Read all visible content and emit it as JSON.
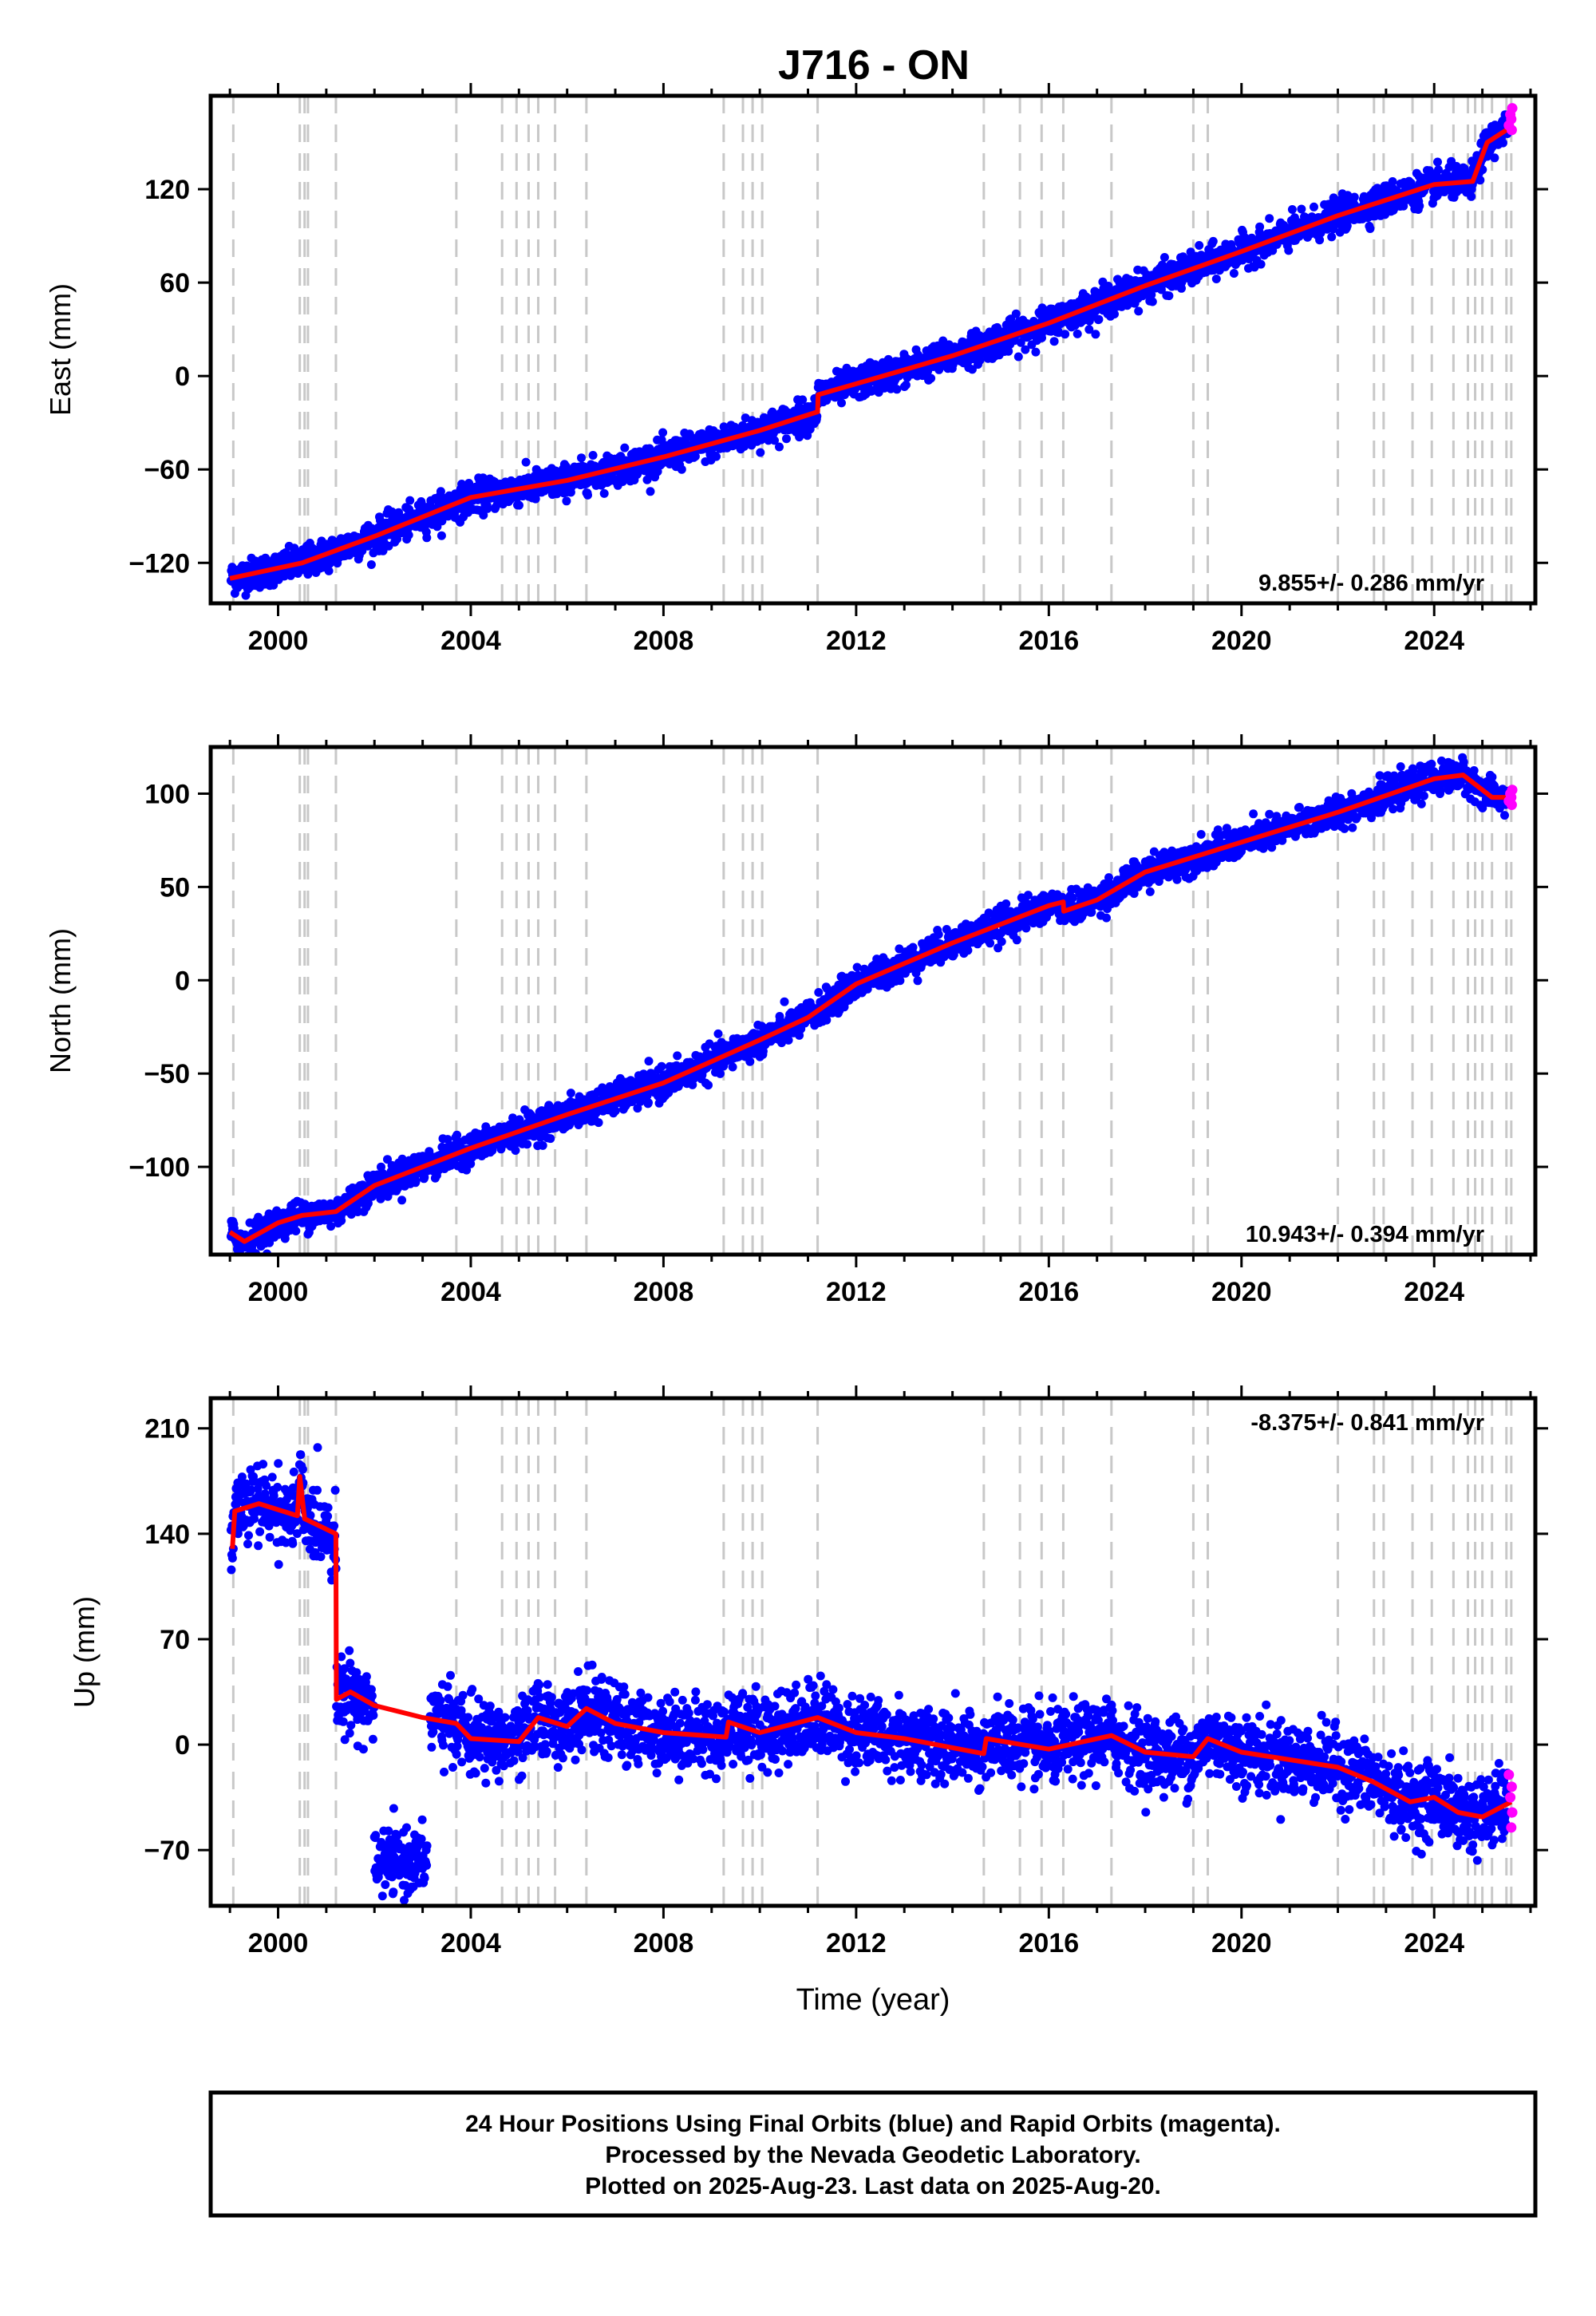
{
  "chart_data": {
    "title": "J716 - ON",
    "type": "scatter",
    "x_range": [
      1998.6,
      2026.1
    ],
    "x_ticks": [
      2000,
      2004,
      2008,
      2012,
      2016,
      2020,
      2024
    ],
    "x_tick_labels": [
      "2000",
      "2004",
      "2008",
      "2012",
      "2016",
      "2020",
      "2024"
    ],
    "xlabel": "Time (year)",
    "colors": {
      "final": "#0000ff",
      "rapid": "#ff00ff",
      "model": "#ff0000",
      "event": "#c8c8c8"
    },
    "event_lines": [
      1999.07,
      2000.45,
      2000.55,
      2000.62,
      2001.2,
      2003.7,
      2004.65,
      2004.95,
      2005.2,
      2005.4,
      2005.75,
      2006.4,
      2009.25,
      2009.65,
      2009.85,
      2010.05,
      2011.2,
      2014.65,
      2015.4,
      2015.85,
      2016.3,
      2017.3,
      2019.0,
      2019.3,
      2022.0,
      2022.75,
      2022.95,
      2023.55,
      2023.95,
      2024.4,
      2024.7,
      2024.85,
      2025.0,
      2025.2,
      2025.5,
      2025.6
    ],
    "panels": [
      {
        "name": "east",
        "ylabel": "East (mm)",
        "ylim": [
          -146,
          180
        ],
        "y_ticks": [
          -120,
          -60,
          0,
          60,
          120
        ],
        "y_tick_labels": [
          "−120",
          "−60",
          "0",
          "60",
          "120"
        ],
        "rate": "9.855+/- 0.286 mm/yr",
        "rate_position": "bottom-right",
        "model": [
          [
            1999.0,
            -130
          ],
          [
            2000.5,
            -120
          ],
          [
            2002,
            -103
          ],
          [
            2004,
            -78
          ],
          [
            2006,
            -67
          ],
          [
            2008,
            -52
          ],
          [
            2010,
            -35
          ],
          [
            2011.2,
            -23
          ],
          [
            2011.21,
            -12
          ],
          [
            2012,
            -5
          ],
          [
            2014,
            13
          ],
          [
            2016,
            34
          ],
          [
            2018,
            58
          ],
          [
            2020,
            80
          ],
          [
            2022,
            103
          ],
          [
            2024,
            123
          ],
          [
            2024.8,
            125
          ],
          [
            2025.1,
            150
          ],
          [
            2025.6,
            160
          ]
        ],
        "final_scatter": 5,
        "rapid_points": [
          [
            2025.55,
            161
          ],
          [
            2025.58,
            168
          ],
          [
            2025.6,
            165
          ],
          [
            2025.61,
            158
          ],
          [
            2025.62,
            172
          ]
        ]
      },
      {
        "name": "north",
        "ylabel": "North (mm)",
        "ylim": [
          -147,
          125
        ],
        "y_ticks": [
          -100,
          -50,
          0,
          50,
          100
        ],
        "y_tick_labels": [
          "−100",
          "−50",
          "0",
          "50",
          "100"
        ],
        "rate": "10.943+/- 0.394 mm/yr",
        "rate_position": "bottom-right",
        "model": [
          [
            1999.0,
            -135
          ],
          [
            1999.3,
            -140
          ],
          [
            2000.0,
            -130
          ],
          [
            2000.5,
            -126
          ],
          [
            2001.2,
            -124
          ],
          [
            2002,
            -110
          ],
          [
            2004,
            -90
          ],
          [
            2006,
            -72
          ],
          [
            2008,
            -55
          ],
          [
            2010,
            -32
          ],
          [
            2011,
            -20
          ],
          [
            2012,
            -2
          ],
          [
            2014,
            20
          ],
          [
            2016,
            40
          ],
          [
            2016.3,
            42
          ],
          [
            2016.31,
            37
          ],
          [
            2017,
            43
          ],
          [
            2018,
            58
          ],
          [
            2020,
            74
          ],
          [
            2022,
            90
          ],
          [
            2024,
            108
          ],
          [
            2024.6,
            110
          ],
          [
            2025.2,
            98
          ],
          [
            2025.6,
            98
          ]
        ],
        "final_scatter": 4,
        "rapid_points": [
          [
            2025.55,
            96
          ],
          [
            2025.58,
            100
          ],
          [
            2025.6,
            98
          ],
          [
            2025.61,
            94
          ],
          [
            2025.62,
            102
          ]
        ]
      },
      {
        "name": "up",
        "ylabel": "Up (mm)",
        "ylim": [
          -107,
          230
        ],
        "y_ticks": [
          -70,
          0,
          70,
          140,
          210
        ],
        "y_tick_labels": [
          "−70",
          "0",
          "70",
          "140",
          "210"
        ],
        "rate": "-8.375+/- 0.841 mm/yr",
        "rate_position": "top-right",
        "model": [
          [
            1999.05,
            130
          ],
          [
            1999.1,
            155
          ],
          [
            1999.6,
            160
          ],
          [
            2000.4,
            152
          ],
          [
            2000.45,
            178
          ],
          [
            2000.55,
            150
          ],
          [
            2001.2,
            140
          ],
          [
            2001.21,
            30
          ],
          [
            2001.5,
            35
          ],
          [
            2002,
            26
          ],
          [
            2003,
            18
          ],
          [
            2003.7,
            14
          ],
          [
            2004,
            4
          ],
          [
            2005,
            2
          ],
          [
            2005.4,
            18
          ],
          [
            2006,
            12
          ],
          [
            2006.4,
            24
          ],
          [
            2007,
            14
          ],
          [
            2008,
            8
          ],
          [
            2009.3,
            5
          ],
          [
            2009.35,
            15
          ],
          [
            2010,
            8
          ],
          [
            2011.2,
            18
          ],
          [
            2012,
            8
          ],
          [
            2013,
            4
          ],
          [
            2014.65,
            -6
          ],
          [
            2014.7,
            4
          ],
          [
            2016,
            -3
          ],
          [
            2017.3,
            6
          ],
          [
            2018,
            -5
          ],
          [
            2019,
            -8
          ],
          [
            2019.3,
            4
          ],
          [
            2020,
            -5
          ],
          [
            2022,
            -15
          ],
          [
            2022.75,
            -25
          ],
          [
            2023.5,
            -38
          ],
          [
            2024,
            -35
          ],
          [
            2024.5,
            -45
          ],
          [
            2025,
            -48
          ],
          [
            2025.6,
            -38
          ]
        ],
        "final_scatter": 12,
        "offset_cluster": {
          "x": [
            2002.0,
            2003.1
          ],
          "y_center": -78,
          "spread": 10
        },
        "rapid_points": [
          [
            2025.55,
            -20
          ],
          [
            2025.58,
            -35
          ],
          [
            2025.6,
            -55
          ],
          [
            2025.61,
            -28
          ],
          [
            2025.62,
            -45
          ]
        ]
      }
    ]
  },
  "footer": {
    "line1": "24 Hour Positions Using Final Orbits (blue) and Rapid Orbits (magenta).",
    "line2": "Processed by the Nevada Geodetic Laboratory.",
    "line3": "Plotted on 2025-Aug-23. Last data on 2025-Aug-20."
  }
}
